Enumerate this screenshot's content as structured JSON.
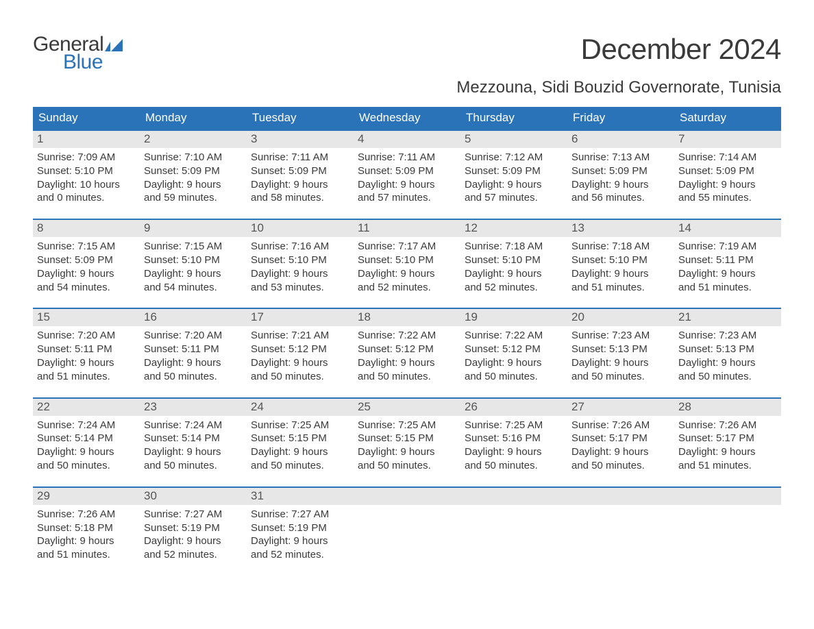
{
  "logo": {
    "text1": "General",
    "text2": "Blue",
    "mark_color": "#2b73b8"
  },
  "title": "December 2024",
  "subtitle": "Mezzouna, Sidi Bouzid Governorate, Tunisia",
  "colors": {
    "header_bg": "#2b73b8",
    "header_text": "#ffffff",
    "daynum_bg": "#e7e7e7",
    "daynum_text": "#555555",
    "body_text": "#3a3a3a",
    "rule": "#2b73b8",
    "page_bg": "#ffffff"
  },
  "typography": {
    "title_fontsize": 42,
    "subtitle_fontsize": 24,
    "dayhead_fontsize": 17,
    "daynum_fontsize": 17,
    "cell_fontsize": 15
  },
  "day_headers": [
    "Sunday",
    "Monday",
    "Tuesday",
    "Wednesday",
    "Thursday",
    "Friday",
    "Saturday"
  ],
  "weeks": [
    [
      {
        "day": "1",
        "sunrise": "Sunrise: 7:09 AM",
        "sunset": "Sunset: 5:10 PM",
        "dl1": "Daylight: 10 hours",
        "dl2": "and 0 minutes."
      },
      {
        "day": "2",
        "sunrise": "Sunrise: 7:10 AM",
        "sunset": "Sunset: 5:09 PM",
        "dl1": "Daylight: 9 hours",
        "dl2": "and 59 minutes."
      },
      {
        "day": "3",
        "sunrise": "Sunrise: 7:11 AM",
        "sunset": "Sunset: 5:09 PM",
        "dl1": "Daylight: 9 hours",
        "dl2": "and 58 minutes."
      },
      {
        "day": "4",
        "sunrise": "Sunrise: 7:11 AM",
        "sunset": "Sunset: 5:09 PM",
        "dl1": "Daylight: 9 hours",
        "dl2": "and 57 minutes."
      },
      {
        "day": "5",
        "sunrise": "Sunrise: 7:12 AM",
        "sunset": "Sunset: 5:09 PM",
        "dl1": "Daylight: 9 hours",
        "dl2": "and 57 minutes."
      },
      {
        "day": "6",
        "sunrise": "Sunrise: 7:13 AM",
        "sunset": "Sunset: 5:09 PM",
        "dl1": "Daylight: 9 hours",
        "dl2": "and 56 minutes."
      },
      {
        "day": "7",
        "sunrise": "Sunrise: 7:14 AM",
        "sunset": "Sunset: 5:09 PM",
        "dl1": "Daylight: 9 hours",
        "dl2": "and 55 minutes."
      }
    ],
    [
      {
        "day": "8",
        "sunrise": "Sunrise: 7:15 AM",
        "sunset": "Sunset: 5:09 PM",
        "dl1": "Daylight: 9 hours",
        "dl2": "and 54 minutes."
      },
      {
        "day": "9",
        "sunrise": "Sunrise: 7:15 AM",
        "sunset": "Sunset: 5:10 PM",
        "dl1": "Daylight: 9 hours",
        "dl2": "and 54 minutes."
      },
      {
        "day": "10",
        "sunrise": "Sunrise: 7:16 AM",
        "sunset": "Sunset: 5:10 PM",
        "dl1": "Daylight: 9 hours",
        "dl2": "and 53 minutes."
      },
      {
        "day": "11",
        "sunrise": "Sunrise: 7:17 AM",
        "sunset": "Sunset: 5:10 PM",
        "dl1": "Daylight: 9 hours",
        "dl2": "and 52 minutes."
      },
      {
        "day": "12",
        "sunrise": "Sunrise: 7:18 AM",
        "sunset": "Sunset: 5:10 PM",
        "dl1": "Daylight: 9 hours",
        "dl2": "and 52 minutes."
      },
      {
        "day": "13",
        "sunrise": "Sunrise: 7:18 AM",
        "sunset": "Sunset: 5:10 PM",
        "dl1": "Daylight: 9 hours",
        "dl2": "and 51 minutes."
      },
      {
        "day": "14",
        "sunrise": "Sunrise: 7:19 AM",
        "sunset": "Sunset: 5:11 PM",
        "dl1": "Daylight: 9 hours",
        "dl2": "and 51 minutes."
      }
    ],
    [
      {
        "day": "15",
        "sunrise": "Sunrise: 7:20 AM",
        "sunset": "Sunset: 5:11 PM",
        "dl1": "Daylight: 9 hours",
        "dl2": "and 51 minutes."
      },
      {
        "day": "16",
        "sunrise": "Sunrise: 7:20 AM",
        "sunset": "Sunset: 5:11 PM",
        "dl1": "Daylight: 9 hours",
        "dl2": "and 50 minutes."
      },
      {
        "day": "17",
        "sunrise": "Sunrise: 7:21 AM",
        "sunset": "Sunset: 5:12 PM",
        "dl1": "Daylight: 9 hours",
        "dl2": "and 50 minutes."
      },
      {
        "day": "18",
        "sunrise": "Sunrise: 7:22 AM",
        "sunset": "Sunset: 5:12 PM",
        "dl1": "Daylight: 9 hours",
        "dl2": "and 50 minutes."
      },
      {
        "day": "19",
        "sunrise": "Sunrise: 7:22 AM",
        "sunset": "Sunset: 5:12 PM",
        "dl1": "Daylight: 9 hours",
        "dl2": "and 50 minutes."
      },
      {
        "day": "20",
        "sunrise": "Sunrise: 7:23 AM",
        "sunset": "Sunset: 5:13 PM",
        "dl1": "Daylight: 9 hours",
        "dl2": "and 50 minutes."
      },
      {
        "day": "21",
        "sunrise": "Sunrise: 7:23 AM",
        "sunset": "Sunset: 5:13 PM",
        "dl1": "Daylight: 9 hours",
        "dl2": "and 50 minutes."
      }
    ],
    [
      {
        "day": "22",
        "sunrise": "Sunrise: 7:24 AM",
        "sunset": "Sunset: 5:14 PM",
        "dl1": "Daylight: 9 hours",
        "dl2": "and 50 minutes."
      },
      {
        "day": "23",
        "sunrise": "Sunrise: 7:24 AM",
        "sunset": "Sunset: 5:14 PM",
        "dl1": "Daylight: 9 hours",
        "dl2": "and 50 minutes."
      },
      {
        "day": "24",
        "sunrise": "Sunrise: 7:25 AM",
        "sunset": "Sunset: 5:15 PM",
        "dl1": "Daylight: 9 hours",
        "dl2": "and 50 minutes."
      },
      {
        "day": "25",
        "sunrise": "Sunrise: 7:25 AM",
        "sunset": "Sunset: 5:15 PM",
        "dl1": "Daylight: 9 hours",
        "dl2": "and 50 minutes."
      },
      {
        "day": "26",
        "sunrise": "Sunrise: 7:25 AM",
        "sunset": "Sunset: 5:16 PM",
        "dl1": "Daylight: 9 hours",
        "dl2": "and 50 minutes."
      },
      {
        "day": "27",
        "sunrise": "Sunrise: 7:26 AM",
        "sunset": "Sunset: 5:17 PM",
        "dl1": "Daylight: 9 hours",
        "dl2": "and 50 minutes."
      },
      {
        "day": "28",
        "sunrise": "Sunrise: 7:26 AM",
        "sunset": "Sunset: 5:17 PM",
        "dl1": "Daylight: 9 hours",
        "dl2": "and 51 minutes."
      }
    ],
    [
      {
        "day": "29",
        "sunrise": "Sunrise: 7:26 AM",
        "sunset": "Sunset: 5:18 PM",
        "dl1": "Daylight: 9 hours",
        "dl2": "and 51 minutes."
      },
      {
        "day": "30",
        "sunrise": "Sunrise: 7:27 AM",
        "sunset": "Sunset: 5:19 PM",
        "dl1": "Daylight: 9 hours",
        "dl2": "and 52 minutes."
      },
      {
        "day": "31",
        "sunrise": "Sunrise: 7:27 AM",
        "sunset": "Sunset: 5:19 PM",
        "dl1": "Daylight: 9 hours",
        "dl2": "and 52 minutes."
      },
      {
        "day": "",
        "sunrise": "",
        "sunset": "",
        "dl1": "",
        "dl2": ""
      },
      {
        "day": "",
        "sunrise": "",
        "sunset": "",
        "dl1": "",
        "dl2": ""
      },
      {
        "day": "",
        "sunrise": "",
        "sunset": "",
        "dl1": "",
        "dl2": ""
      },
      {
        "day": "",
        "sunrise": "",
        "sunset": "",
        "dl1": "",
        "dl2": ""
      }
    ]
  ]
}
